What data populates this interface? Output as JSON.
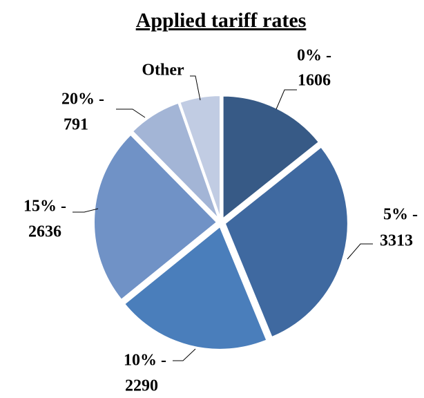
{
  "chart_data": {
    "type": "pie",
    "title": "Applied tariff rates",
    "categories": [
      "0% -",
      "5% -",
      "10% -",
      "15% -",
      "20% -",
      "Other"
    ],
    "values": [
      1606,
      3313,
      2290,
      2636,
      791,
      600
    ],
    "colors": [
      "#375a86",
      "#3f69a0",
      "#4a7ebb",
      "#7092c6",
      "#a3b5d6",
      "#c1cce3"
    ],
    "value_shown": [
      true,
      true,
      true,
      true,
      true,
      false
    ]
  }
}
